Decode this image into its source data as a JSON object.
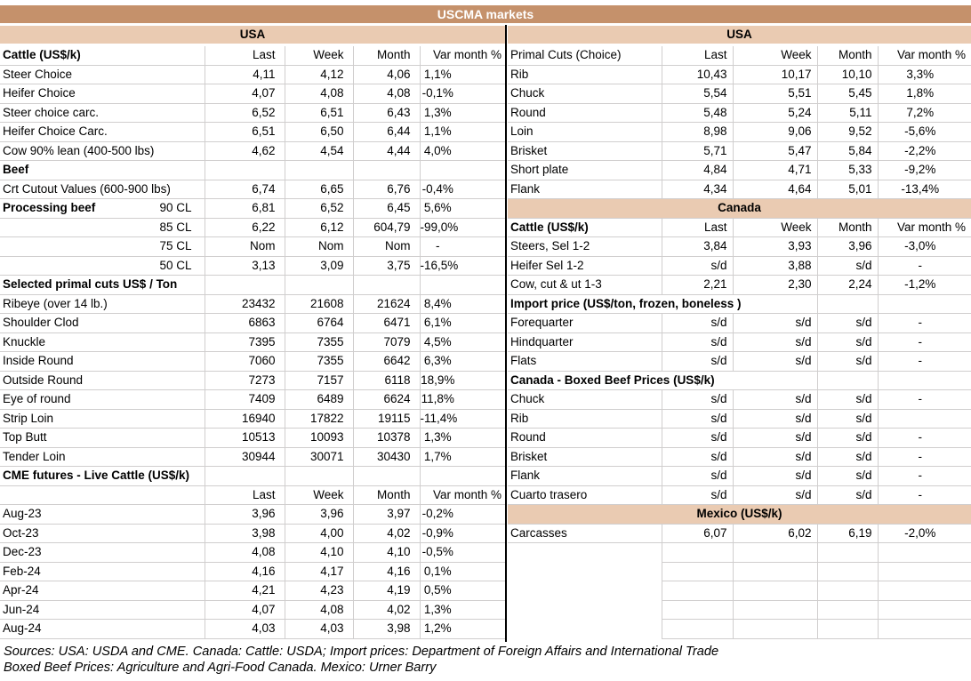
{
  "title": "USCMA markets",
  "left_region": "USA",
  "right_region": "USA",
  "columns": [
    "Last",
    "Week",
    "Month",
    "Var month %"
  ],
  "left_rows": [
    {
      "t": "hdr",
      "l": "Cattle (US$/k)",
      "b": true
    },
    {
      "t": "d",
      "l": "Steer Choice",
      "v": [
        "4,11",
        "4,12",
        "4,06",
        "1,1%"
      ]
    },
    {
      "t": "d",
      "l": "Heifer Choice",
      "v": [
        "4,07",
        "4,08",
        "4,08",
        "-0,1%"
      ]
    },
    {
      "t": "d",
      "l": "Steer choice carc.",
      "v": [
        "6,52",
        "6,51",
        "6,43",
        "1,3%"
      ]
    },
    {
      "t": "d",
      "l": "Heifer Choice Carc.",
      "v": [
        "6,51",
        "6,50",
        "6,44",
        "1,1%"
      ]
    },
    {
      "t": "d",
      "l": "Cow 90% lean (400-500 lbs)",
      "v": [
        "4,62",
        "4,54",
        "4,44",
        "4,0%"
      ]
    },
    {
      "t": "sec",
      "l": "Beef"
    },
    {
      "t": "d",
      "l": "Crt Cutout Values (600-900 lbs)",
      "v": [
        "6,74",
        "6,65",
        "6,76",
        "-0,4%"
      ]
    },
    {
      "t": "d",
      "l": "Processing beef",
      "l2": "90 CL",
      "b": true,
      "v": [
        "6,81",
        "6,52",
        "6,45",
        "5,6%"
      ]
    },
    {
      "t": "d",
      "l": "85 CL",
      "la": "r",
      "v": [
        "6,22",
        "6,12",
        "604,79",
        "-99,0%"
      ]
    },
    {
      "t": "d",
      "l": "75 CL",
      "la": "r",
      "v": [
        "Nom",
        "Nom",
        "Nom",
        "-"
      ]
    },
    {
      "t": "d",
      "l": "50 CL",
      "la": "r",
      "v": [
        "3,13",
        "3,09",
        "3,75",
        "-16,5%"
      ]
    },
    {
      "t": "sec",
      "l": "Selected primal cuts US$ / Ton"
    },
    {
      "t": "d",
      "l": "Ribeye (over 14 lb.)",
      "v": [
        "23432",
        "21608",
        "21624",
        "8,4%"
      ]
    },
    {
      "t": "d",
      "l": "Shoulder Clod",
      "v": [
        "6863",
        "6764",
        "6471",
        "6,1%"
      ]
    },
    {
      "t": "d",
      "l": "Knuckle",
      "v": [
        "7395",
        "7355",
        "7079",
        "4,5%"
      ]
    },
    {
      "t": "d",
      "l": "Inside Round",
      "v": [
        "7060",
        "7355",
        "6642",
        "6,3%"
      ]
    },
    {
      "t": "d",
      "l": "Outside Round",
      "v": [
        "7273",
        "7157",
        "6118",
        "18,9%"
      ]
    },
    {
      "t": "d",
      "l": "Eye of round",
      "v": [
        "7409",
        "6489",
        "6624",
        "11,8%"
      ]
    },
    {
      "t": "d",
      "l": "Strip Loin",
      "v": [
        "16940",
        "17822",
        "19115",
        "-11,4%"
      ]
    },
    {
      "t": "d",
      "l": "Top Butt",
      "v": [
        "10513",
        "10093",
        "10378",
        "1,3%"
      ]
    },
    {
      "t": "d",
      "l": "Tender Loin",
      "v": [
        "30944",
        "30071",
        "30430",
        "1,7%"
      ]
    },
    {
      "t": "sec",
      "l": "CME futures - Live Cattle (US$/k)"
    },
    {
      "t": "hdr",
      "l": ""
    },
    {
      "t": "d",
      "l": "Aug-23",
      "v": [
        "3,96",
        "3,96",
        "3,97",
        "-0,2%"
      ]
    },
    {
      "t": "d",
      "l": "Oct-23",
      "v": [
        "3,98",
        "4,00",
        "4,02",
        "-0,9%"
      ]
    },
    {
      "t": "d",
      "l": "Dec-23",
      "v": [
        "4,08",
        "4,10",
        "4,10",
        "-0,5%"
      ]
    },
    {
      "t": "d",
      "l": "Feb-24",
      "v": [
        "4,16",
        "4,17",
        "4,16",
        "0,1%"
      ]
    },
    {
      "t": "d",
      "l": "Apr-24",
      "v": [
        "4,21",
        "4,23",
        "4,19",
        "0,5%"
      ]
    },
    {
      "t": "d",
      "l": "Jun-24",
      "v": [
        "4,07",
        "4,08",
        "4,02",
        "1,3%"
      ]
    },
    {
      "t": "d",
      "l": "Aug-24",
      "v": [
        "4,03",
        "4,03",
        "3,98",
        "1,2%"
      ]
    }
  ],
  "right_rows": [
    {
      "t": "hdr",
      "l": "Primal Cuts (Choice)"
    },
    {
      "t": "d",
      "l": "Rib",
      "v": [
        "10,43",
        "10,17",
        "10,10",
        "3,3%"
      ]
    },
    {
      "t": "d",
      "l": "Chuck",
      "v": [
        "5,54",
        "5,51",
        "5,45",
        "1,8%"
      ]
    },
    {
      "t": "d",
      "l": "Round",
      "v": [
        "5,48",
        "5,24",
        "5,11",
        "7,2%"
      ]
    },
    {
      "t": "d",
      "l": "Loin",
      "v": [
        "8,98",
        "9,06",
        "9,52",
        "-5,6%"
      ]
    },
    {
      "t": "d",
      "l": "Brisket",
      "v": [
        "5,71",
        "5,47",
        "5,84",
        "-2,2%"
      ]
    },
    {
      "t": "d",
      "l": "Short plate",
      "v": [
        "4,84",
        "4,71",
        "5,33",
        "-9,2%"
      ]
    },
    {
      "t": "d",
      "l": "Flank",
      "v": [
        "4,34",
        "4,64",
        "5,01",
        "-13,4%"
      ]
    },
    {
      "t": "band",
      "l": "Canada"
    },
    {
      "t": "hdr",
      "l": "Cattle (US$/k)",
      "b": true
    },
    {
      "t": "d",
      "l": "Steers, Sel 1-2",
      "v": [
        "3,84",
        "3,93",
        "3,96",
        "-3,0%"
      ]
    },
    {
      "t": "d",
      "l": "Heifer Sel 1-2",
      "v": [
        "s/d",
        "3,88",
        "s/d",
        "-"
      ]
    },
    {
      "t": "d",
      "l": "Cow, cut & ut 1-3",
      "v": [
        "2,21",
        "2,30",
        "2,24",
        "-1,2%"
      ]
    },
    {
      "t": "sec",
      "l": "Import price (US$/ton, frozen, boneless )"
    },
    {
      "t": "d",
      "l": "Forequarter",
      "v": [
        "s/d",
        "s/d",
        "s/d",
        "-"
      ]
    },
    {
      "t": "d",
      "l": "Hindquarter",
      "v": [
        "s/d",
        "s/d",
        "s/d",
        "-"
      ]
    },
    {
      "t": "d",
      "l": "Flats",
      "v": [
        "s/d",
        "s/d",
        "s/d",
        "-"
      ]
    },
    {
      "t": "sec",
      "l": "Canada - Boxed Beef Prices (US$/k)"
    },
    {
      "t": "d",
      "l": "Chuck",
      "v": [
        "s/d",
        "s/d",
        "s/d",
        "-"
      ]
    },
    {
      "t": "d",
      "l": "Rib",
      "v": [
        "s/d",
        "s/d",
        "s/d",
        ""
      ]
    },
    {
      "t": "d",
      "l": "Round",
      "v": [
        "s/d",
        "s/d",
        "s/d",
        "-"
      ]
    },
    {
      "t": "d",
      "l": "Brisket",
      "v": [
        "s/d",
        "s/d",
        "s/d",
        "-"
      ]
    },
    {
      "t": "d",
      "l": "Flank",
      "v": [
        "s/d",
        "s/d",
        "s/d",
        "-"
      ]
    },
    {
      "t": "d",
      "l": "Cuarto trasero",
      "v": [
        "s/d",
        "s/d",
        "s/d",
        "-"
      ]
    },
    {
      "t": "band",
      "l": "Mexico (US$/k)"
    },
    {
      "t": "d",
      "l": "Carcasses",
      "v": [
        "6,07",
        "6,02",
        "6,19",
        "-2,0%"
      ]
    },
    {
      "t": "e"
    },
    {
      "t": "e"
    },
    {
      "t": "e"
    },
    {
      "t": "e"
    },
    {
      "t": "e"
    }
  ],
  "footer": {
    "line1": "Sources: USA: USDA and CME. Canada: Cattle: USDA; Import prices: Department of Foreign Affairs and International Trade",
    "line2": "Boxed Beef Prices: Agriculture and Agri-Food Canada. Mexico: Urner Barry"
  },
  "colors": {
    "title_bg": "#C5916B",
    "band_bg": "#EACBB2",
    "grid": "#D0CECE",
    "divider": "#000000",
    "title_text": "#FFFFFF"
  }
}
